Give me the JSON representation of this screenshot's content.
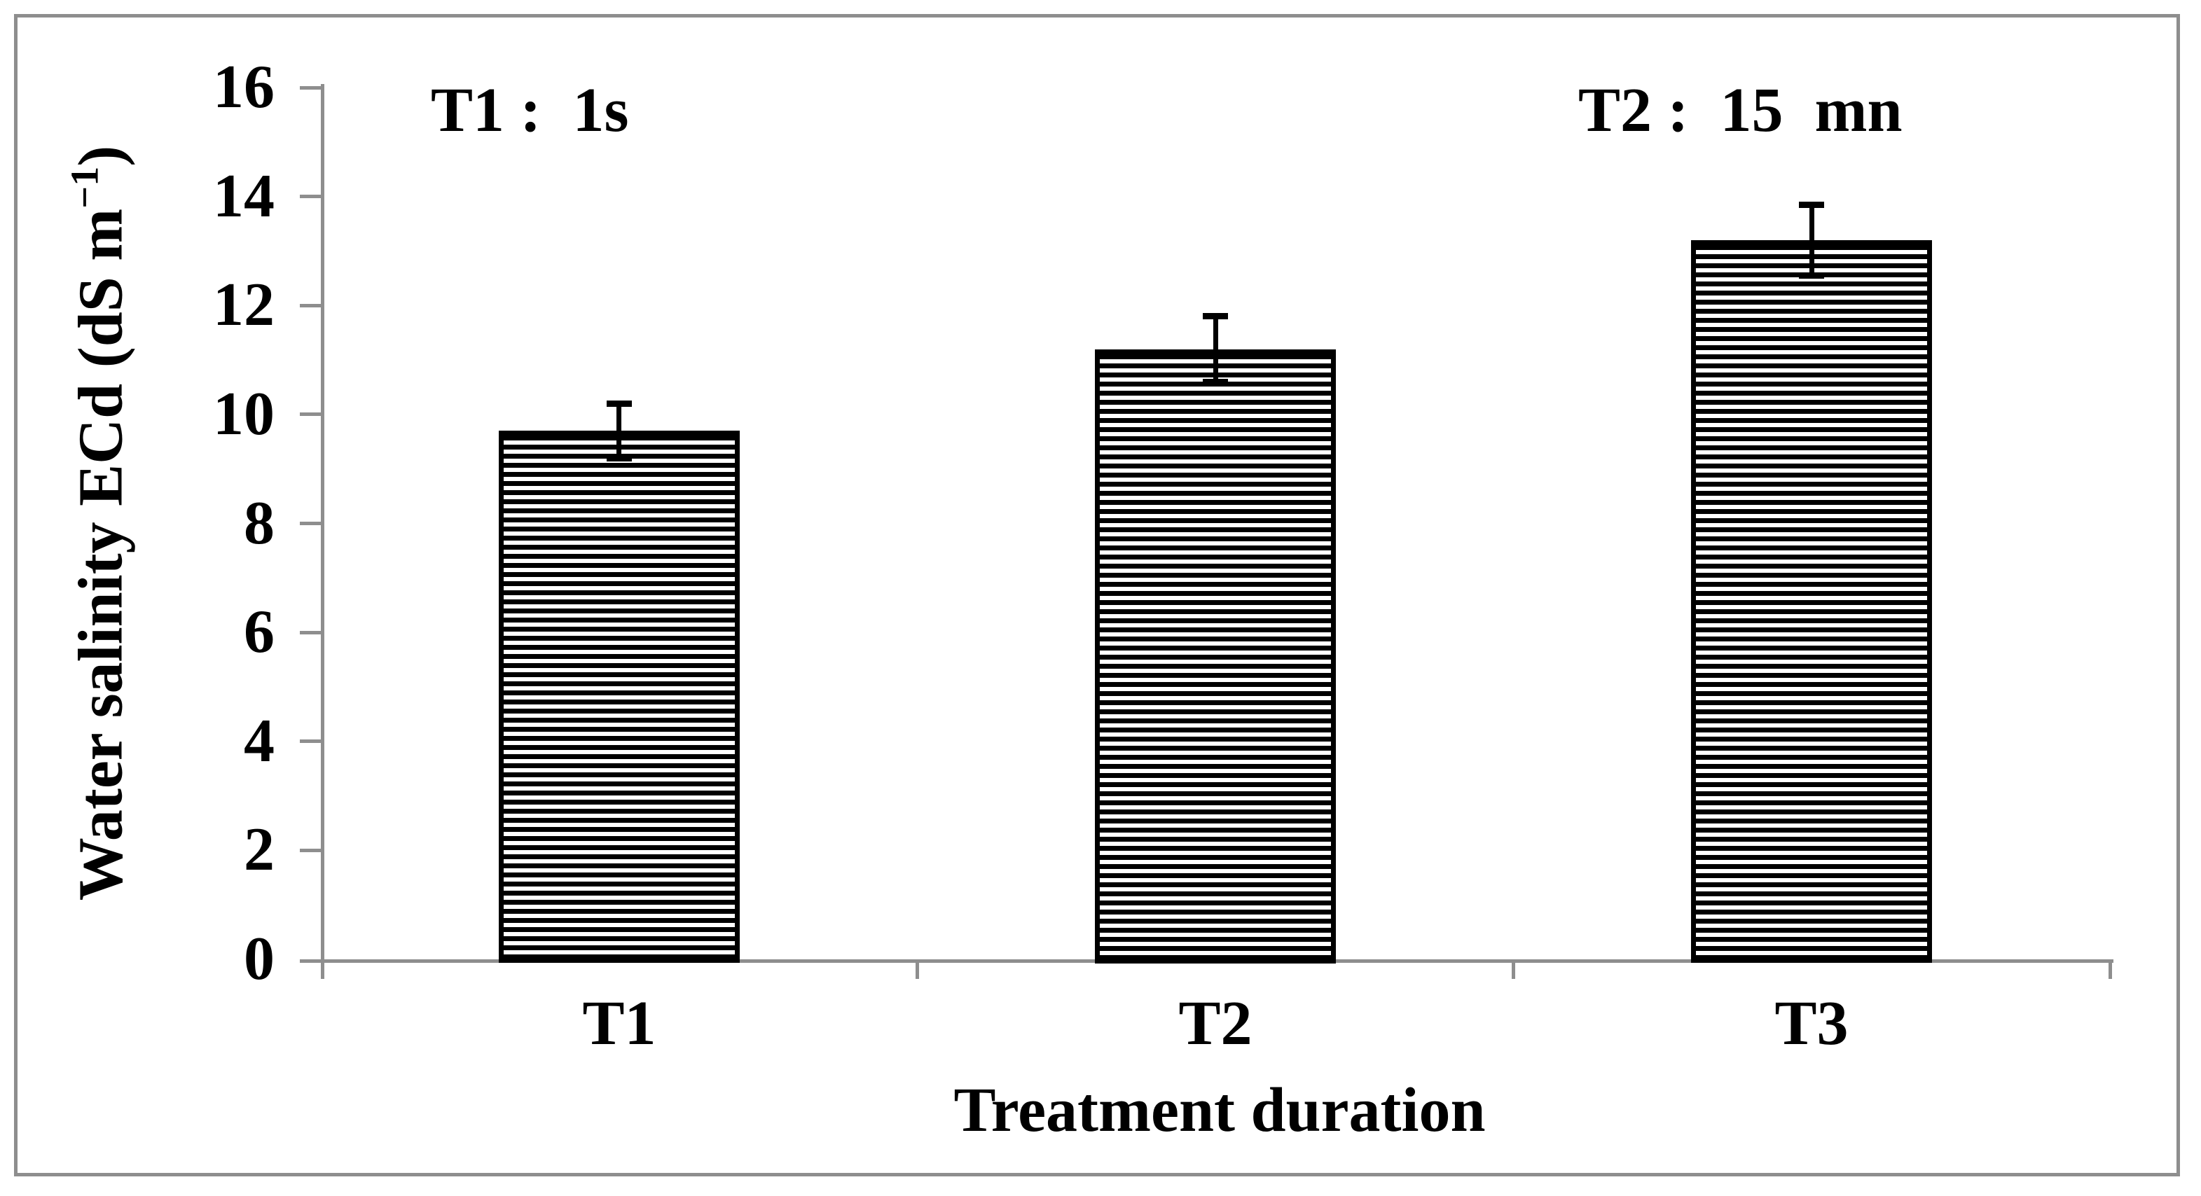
{
  "figure": {
    "background_color": "#ffffff",
    "border_color": "#8e8e8e",
    "axis_color": "#8e8e8e",
    "bar_outline_color": "#000000",
    "hatch_color": "#000000",
    "text_color": "#000000"
  },
  "annotations": {
    "left": "T1 :  1s",
    "right": "T2 :  15  mn"
  },
  "axes": {
    "x_label": "Treatment duration",
    "y_label_prefix": "Water salinity ECd (dS m",
    "y_label_superscript": "−1",
    "y_label_suffix": ")"
  },
  "chart_data": {
    "type": "bar",
    "categories": [
      "T1",
      "T2",
      "T3"
    ],
    "values": [
      9.7,
      11.2,
      13.2
    ],
    "error_bars_plus_minus": [
      0.5,
      0.6,
      0.65
    ],
    "title": "",
    "xlabel": "Treatment duration",
    "ylabel": "Water salinity ECd (dS m−1)",
    "ylim": [
      0,
      16
    ],
    "yticks": [
      0,
      2,
      4,
      6,
      8,
      10,
      12,
      14,
      16
    ],
    "grid": false,
    "legend": "none",
    "bar_style": "white fill, black horizontal-line hatch, black outline, black error bars with caps",
    "annotations": [
      {
        "text": "T1 :  1s",
        "position": "top-left"
      },
      {
        "text": "T2 :  15  mn",
        "position": "top-right"
      }
    ]
  }
}
